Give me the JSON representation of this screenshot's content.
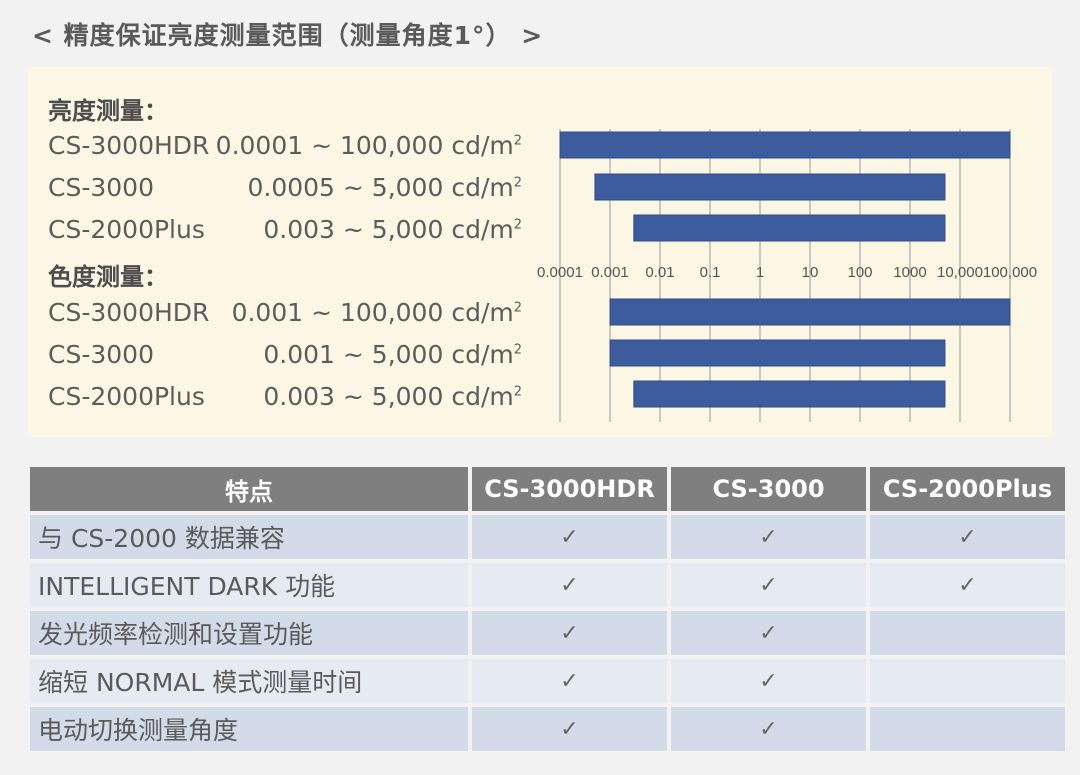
{
  "page": {
    "title": "< 精度保证亮度测量范围（测量角度1°） >"
  },
  "panel": {
    "luminance_heading": "亮度测量：",
    "chromaticity_heading": "色度测量：",
    "unit_base": "cd/m",
    "unit_exp": "2",
    "luminance_rows": [
      {
        "model": "CS-3000HDR",
        "range": "0.0001 ~ 100,000"
      },
      {
        "model": "CS-3000",
        "range": "0.0005 ~ 5,000"
      },
      {
        "model": "CS-2000Plus",
        "range": "0.003 ~ 5,000"
      }
    ],
    "chromaticity_rows": [
      {
        "model": "CS-3000HDR",
        "range": "0.001 ~ 100,000"
      },
      {
        "model": "CS-3000",
        "range": "0.001 ~ 5,000"
      },
      {
        "model": "CS-2000Plus",
        "range": "0.003 ~ 5,000"
      }
    ]
  },
  "chart_data": {
    "type": "bar",
    "orientation": "horizontal",
    "x_scale": "log",
    "xlim": [
      0.0001,
      100000
    ],
    "x_ticks": [
      "0.0001",
      "0.001",
      "0.01",
      "0.1",
      "1",
      "10",
      "100",
      "1000",
      "10,000",
      "100,000"
    ],
    "grid": true,
    "bar_color": "#3c5c9e",
    "groups": [
      {
        "group": "亮度测量",
        "bars": [
          {
            "category": "CS-3000HDR",
            "min": 0.0001,
            "max": 100000
          },
          {
            "category": "CS-3000",
            "min": 0.0005,
            "max": 5000
          },
          {
            "category": "CS-2000Plus",
            "min": 0.003,
            "max": 5000
          }
        ]
      },
      {
        "group": "色度测量",
        "bars": [
          {
            "category": "CS-3000HDR",
            "min": 0.001,
            "max": 100000
          },
          {
            "category": "CS-3000",
            "min": 0.001,
            "max": 5000
          },
          {
            "category": "CS-2000Plus",
            "min": 0.003,
            "max": 5000
          }
        ]
      }
    ]
  },
  "table": {
    "headers": [
      "特点",
      "CS-3000HDR",
      "CS-3000",
      "CS-2000Plus"
    ],
    "check_symbol": "✓",
    "rows": [
      {
        "feature": "与 CS-2000 数据兼容",
        "checks": [
          true,
          true,
          true
        ]
      },
      {
        "feature": "INTELLIGENT DARK 功能",
        "checks": [
          true,
          true,
          true
        ]
      },
      {
        "feature": "发光频率检测和设置功能",
        "checks": [
          true,
          true,
          false
        ]
      },
      {
        "feature": "缩短 NORMAL 模式测量时间",
        "checks": [
          true,
          true,
          false
        ]
      },
      {
        "feature": "电动切换测量角度",
        "checks": [
          true,
          true,
          false
        ]
      }
    ]
  }
}
